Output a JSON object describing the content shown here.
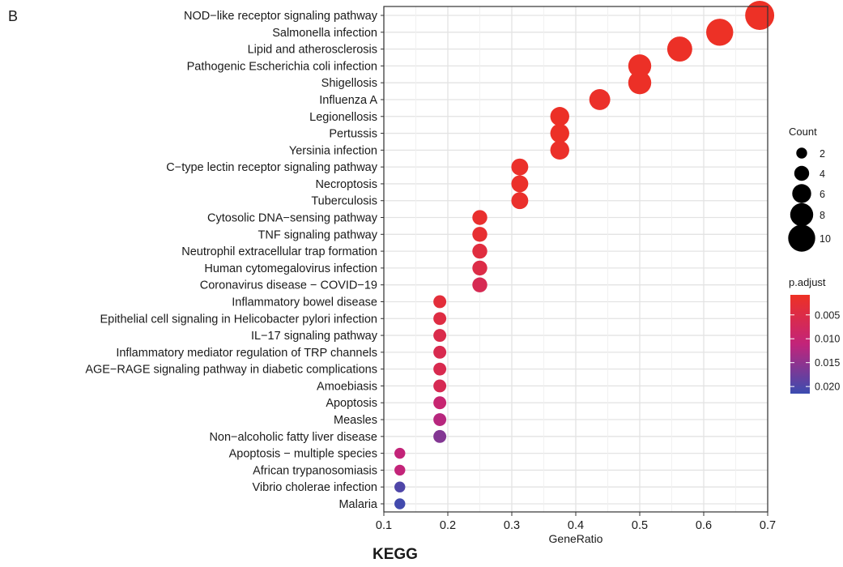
{
  "panel_letter": "B",
  "caption": "KEGG",
  "chart_data": {
    "type": "scatter",
    "xlabel": "GeneRatio",
    "ylabel": "",
    "xlim": [
      0.1,
      0.7
    ],
    "x_ticks": [
      "0.1",
      "0.2",
      "0.3",
      "0.4",
      "0.5",
      "0.6",
      "0.7"
    ],
    "grid": true,
    "legend_size_title": "Count",
    "legend_size_values": [
      2,
      4,
      6,
      8,
      10
    ],
    "legend_color_title": "p.adjust",
    "legend_color_ticks": [
      "0.005",
      "0.010",
      "0.015",
      "0.020"
    ],
    "color_low": "#ee3124",
    "color_mid": "#c2247a",
    "color_high": "#3b4cb0",
    "pathways": [
      {
        "name": "NOD−like receptor signaling pathway",
        "x": 0.6875,
        "count": 11,
        "p_adjust": 0.001
      },
      {
        "name": "Salmonella infection",
        "x": 0.625,
        "count": 10,
        "p_adjust": 0.001
      },
      {
        "name": "Lipid and atherosclerosis",
        "x": 0.5625,
        "count": 9,
        "p_adjust": 0.0012
      },
      {
        "name": "Pathogenic Escherichia coli infection",
        "x": 0.5,
        "count": 8,
        "p_adjust": 0.0012
      },
      {
        "name": "Shigellosis",
        "x": 0.5,
        "count": 8,
        "p_adjust": 0.0012
      },
      {
        "name": "Influenza A",
        "x": 0.4375,
        "count": 7,
        "p_adjust": 0.0015
      },
      {
        "name": "Legionellosis",
        "x": 0.375,
        "count": 6,
        "p_adjust": 0.0012
      },
      {
        "name": "Pertussis",
        "x": 0.375,
        "count": 6,
        "p_adjust": 0.0012
      },
      {
        "name": "Yersinia infection",
        "x": 0.375,
        "count": 6,
        "p_adjust": 0.0015
      },
      {
        "name": "C−type lectin receptor signaling pathway",
        "x": 0.3125,
        "count": 5,
        "p_adjust": 0.0015
      },
      {
        "name": "Necroptosis",
        "x": 0.3125,
        "count": 5,
        "p_adjust": 0.0015
      },
      {
        "name": "Tuberculosis",
        "x": 0.3125,
        "count": 5,
        "p_adjust": 0.0018
      },
      {
        "name": "Cytosolic DNA−sensing pathway",
        "x": 0.25,
        "count": 4,
        "p_adjust": 0.002
      },
      {
        "name": "TNF signaling pathway",
        "x": 0.25,
        "count": 4,
        "p_adjust": 0.0025
      },
      {
        "name": "Neutrophil extracellular trap formation",
        "x": 0.25,
        "count": 4,
        "p_adjust": 0.004
      },
      {
        "name": "Human cytomegalovirus infection",
        "x": 0.25,
        "count": 4,
        "p_adjust": 0.005
      },
      {
        "name": "Coronavirus disease − COVID−19",
        "x": 0.25,
        "count": 4,
        "p_adjust": 0.0065
      },
      {
        "name": "Inflammatory bowel disease",
        "x": 0.1875,
        "count": 3,
        "p_adjust": 0.0035
      },
      {
        "name": "Epithelial cell signaling in Helicobacter pylori infection",
        "x": 0.1875,
        "count": 3,
        "p_adjust": 0.0045
      },
      {
        "name": "IL−17 signaling pathway",
        "x": 0.1875,
        "count": 3,
        "p_adjust": 0.0055
      },
      {
        "name": "Inflammatory mediator regulation of TRP channels",
        "x": 0.1875,
        "count": 3,
        "p_adjust": 0.006
      },
      {
        "name": "AGE−RAGE signaling pathway in diabetic complications",
        "x": 0.1875,
        "count": 3,
        "p_adjust": 0.006
      },
      {
        "name": "Amoebiasis",
        "x": 0.1875,
        "count": 3,
        "p_adjust": 0.0065
      },
      {
        "name": "Apoptosis",
        "x": 0.1875,
        "count": 3,
        "p_adjust": 0.01
      },
      {
        "name": "Measles",
        "x": 0.1875,
        "count": 3,
        "p_adjust": 0.012
      },
      {
        "name": "Non−alcoholic fatty liver disease",
        "x": 0.1875,
        "count": 3,
        "p_adjust": 0.016
      },
      {
        "name": "Apoptosis − multiple species",
        "x": 0.125,
        "count": 2,
        "p_adjust": 0.011
      },
      {
        "name": "African trypanosomiasis",
        "x": 0.125,
        "count": 2,
        "p_adjust": 0.011
      },
      {
        "name": "Vibrio cholerae infection",
        "x": 0.125,
        "count": 2,
        "p_adjust": 0.02
      },
      {
        "name": "Malaria",
        "x": 0.125,
        "count": 2,
        "p_adjust": 0.021
      }
    ]
  }
}
